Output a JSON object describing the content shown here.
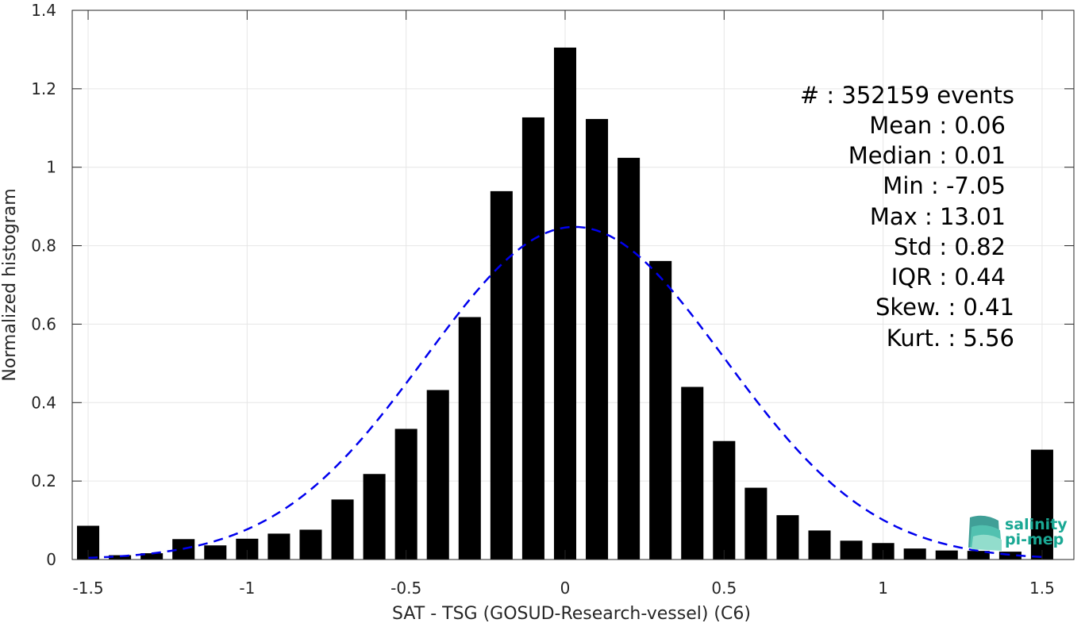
{
  "chart_data": {
    "type": "bar",
    "xlabel": "SAT - TSG (GOSUD-Research-vessel) (C6)",
    "ylabel": "Normalized histogram",
    "xlim": [
      -1.55,
      1.6
    ],
    "ylim": [
      0,
      1.4
    ],
    "xticks": [
      -1.5,
      -1,
      -0.5,
      0,
      0.5,
      1,
      1.5
    ],
    "xtick_labels": [
      "-1.5",
      "-1",
      "-0.5",
      "0",
      "0.5",
      "1",
      "1.5"
    ],
    "yticks": [
      0,
      0.2,
      0.4,
      0.6,
      0.8,
      1,
      1.2,
      1.4
    ],
    "ytick_labels": [
      "0",
      "0.2",
      "0.4",
      "0.6",
      "0.8",
      "1",
      "1.2",
      "1.4"
    ],
    "grid": true,
    "bar_color": "#000000",
    "bar_width": 0.07,
    "bins": [
      {
        "x": -1.5,
        "value": 0.086
      },
      {
        "x": -1.4,
        "value": 0.011
      },
      {
        "x": -1.3,
        "value": 0.016
      },
      {
        "x": -1.2,
        "value": 0.052
      },
      {
        "x": -1.1,
        "value": 0.036
      },
      {
        "x": -1.0,
        "value": 0.053
      },
      {
        "x": -0.9,
        "value": 0.066
      },
      {
        "x": -0.8,
        "value": 0.076
      },
      {
        "x": -0.7,
        "value": 0.153
      },
      {
        "x": -0.6,
        "value": 0.218
      },
      {
        "x": -0.5,
        "value": 0.333
      },
      {
        "x": -0.4,
        "value": 0.432
      },
      {
        "x": -0.3,
        "value": 0.618
      },
      {
        "x": -0.2,
        "value": 0.939
      },
      {
        "x": -0.1,
        "value": 1.127
      },
      {
        "x": 0.0,
        "value": 1.305
      },
      {
        "x": 0.1,
        "value": 1.123
      },
      {
        "x": 0.2,
        "value": 1.024
      },
      {
        "x": 0.3,
        "value": 0.761
      },
      {
        "x": 0.4,
        "value": 0.44
      },
      {
        "x": 0.5,
        "value": 0.302
      },
      {
        "x": 0.6,
        "value": 0.183
      },
      {
        "x": 0.7,
        "value": 0.113
      },
      {
        "x": 0.8,
        "value": 0.074
      },
      {
        "x": 0.9,
        "value": 0.048
      },
      {
        "x": 1.0,
        "value": 0.042
      },
      {
        "x": 1.1,
        "value": 0.028
      },
      {
        "x": 1.2,
        "value": 0.023
      },
      {
        "x": 1.3,
        "value": 0.022
      },
      {
        "x": 1.4,
        "value": 0.02
      },
      {
        "x": 1.5,
        "value": 0.28
      }
    ],
    "fit_curve": {
      "type": "gaussian",
      "mean": 0.03,
      "std": 0.47,
      "peak": 0.848,
      "x_range": [
        -1.5,
        1.5
      ],
      "color": "#0000ee",
      "style": "dashed"
    },
    "stats": [
      "#  : 352159 events",
      "Mean : 0.06",
      "Median : 0.01",
      "Min : -7.05",
      "Max : 13.01",
      "Std : 0.82",
      "IQR : 0.44",
      "Skew. : 0.41",
      "Kurt. : 5.56"
    ],
    "logo": {
      "line1": "salinity",
      "line2": "pi-mep"
    }
  }
}
